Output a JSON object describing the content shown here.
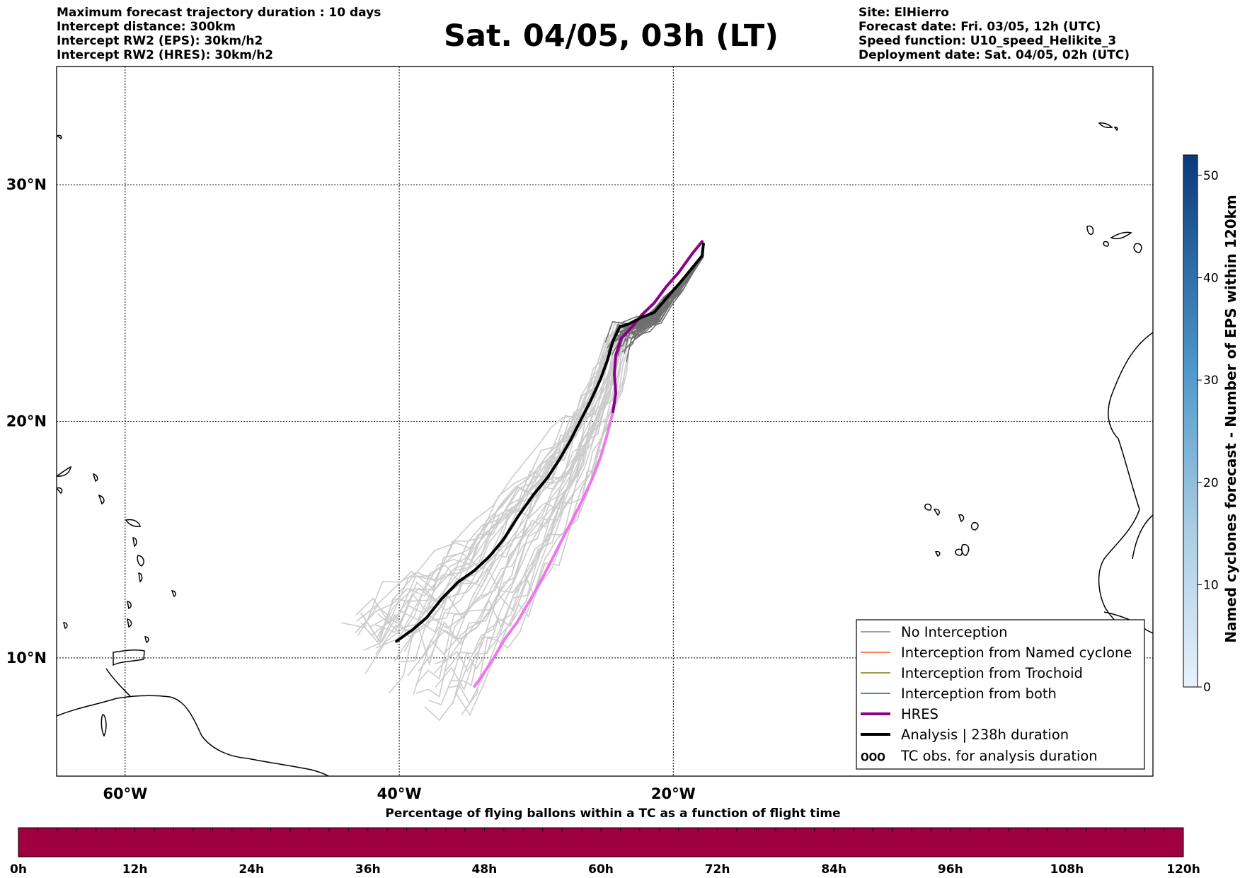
{
  "header_left": [
    "Maximum forecast trajectory duration : 10 days",
    "Intercept distance: 300km",
    "Intercept RW2 (EPS):  30km/h2",
    "Intercept RW2 (HRES): 30km/h2"
  ],
  "title": "Sat. 04/05, 03h (LT)",
  "header_right": [
    "Site: ElHierro",
    "Forecast date: Fri. 03/05, 12h (UTC)",
    "Speed function: U10_speed_Helikite_3",
    "Deployment date: Sat. 04/05, 02h (UTC)"
  ],
  "map": {
    "lon_range": [
      -65,
      15
    ],
    "lat_range": [
      5,
      35
    ],
    "lon_ticks": [
      {
        "value": -60,
        "label": "60°W"
      },
      {
        "value": -40,
        "label": "40°W"
      },
      {
        "value": -20,
        "label": "20°W"
      }
    ],
    "lat_ticks": [
      {
        "value": 10,
        "label": "10°N"
      },
      {
        "value": 20,
        "label": "20°N"
      },
      {
        "value": 30,
        "label": "30°N"
      }
    ],
    "grid": true,
    "hres_track": [
      [
        -17.9,
        27.6
      ],
      [
        -18.6,
        27.1
      ],
      [
        -19.6,
        26.3
      ],
      [
        -20.5,
        25.7
      ],
      [
        -21.4,
        25.0
      ],
      [
        -22.3,
        24.5
      ],
      [
        -23.0,
        24.0
      ],
      [
        -23.8,
        23.5
      ],
      [
        -24.2,
        22.8
      ],
      [
        -24.3,
        22.0
      ],
      [
        -24.2,
        21.2
      ],
      [
        -24.4,
        20.4
      ],
      [
        -24.8,
        19.5
      ],
      [
        -25.3,
        18.5
      ],
      [
        -25.9,
        17.6
      ],
      [
        -26.6,
        16.7
      ],
      [
        -27.4,
        15.8
      ],
      [
        -28.2,
        14.9
      ],
      [
        -29.0,
        14.0
      ],
      [
        -29.8,
        13.1
      ],
      [
        -30.6,
        12.3
      ],
      [
        -31.4,
        11.5
      ],
      [
        -32.3,
        10.8
      ],
      [
        -33.1,
        10.0
      ],
      [
        -34.0,
        9.2
      ],
      [
        -34.5,
        8.8
      ]
    ],
    "analysis_track": [
      [
        -17.8,
        27.5
      ],
      [
        -17.9,
        27.0
      ],
      [
        -18.6,
        26.5
      ],
      [
        -19.6,
        25.8
      ],
      [
        -20.5,
        25.2
      ],
      [
        -21.4,
        24.6
      ],
      [
        -22.3,
        24.4
      ],
      [
        -23.3,
        24.1
      ],
      [
        -23.9,
        24.0
      ],
      [
        -24.4,
        23.4
      ],
      [
        -24.8,
        22.6
      ],
      [
        -25.3,
        21.8
      ],
      [
        -26.0,
        20.9
      ],
      [
        -26.8,
        20.0
      ],
      [
        -27.5,
        19.2
      ],
      [
        -28.3,
        18.4
      ],
      [
        -29.2,
        17.6
      ],
      [
        -30.2,
        16.9
      ],
      [
        -31.3,
        16.0
      ],
      [
        -32.4,
        15.0
      ],
      [
        -33.4,
        14.3
      ],
      [
        -34.5,
        13.7
      ],
      [
        -35.7,
        13.2
      ],
      [
        -36.9,
        12.5
      ],
      [
        -38.0,
        11.7
      ],
      [
        -39.0,
        11.2
      ],
      [
        -40.2,
        10.7
      ]
    ]
  },
  "legend": [
    {
      "label": "No Interception",
      "color": "#808080"
    },
    {
      "label": "Interception from Named cyclone",
      "color": "#ff5a1f"
    },
    {
      "label": "Interception from Trochoid",
      "color": "#7a7a1a"
    },
    {
      "label": "Interception from both",
      "color": "#1e7a1e"
    },
    {
      "label": "HRES",
      "color": "#8b008b"
    },
    {
      "label": "Analysis | 238h duration",
      "color": "#000000"
    },
    {
      "label": "TC obs. for analysis duration",
      "color": "#000000"
    }
  ],
  "colorbar_right": {
    "label": "Named cyclones forecast - Number of EPS within 120km",
    "range": [
      0,
      52
    ],
    "ticks": [
      "0",
      "10",
      "20",
      "30",
      "40",
      "50"
    ]
  },
  "colorbar_bottom": {
    "title": "Percentage of flying ballons within a TC as a function of flight time",
    "ticks": [
      "0h",
      "12h",
      "24h",
      "36h",
      "48h",
      "60h",
      "72h",
      "84h",
      "96h",
      "108h",
      "120h"
    ],
    "fill_color": "#9e0040"
  }
}
